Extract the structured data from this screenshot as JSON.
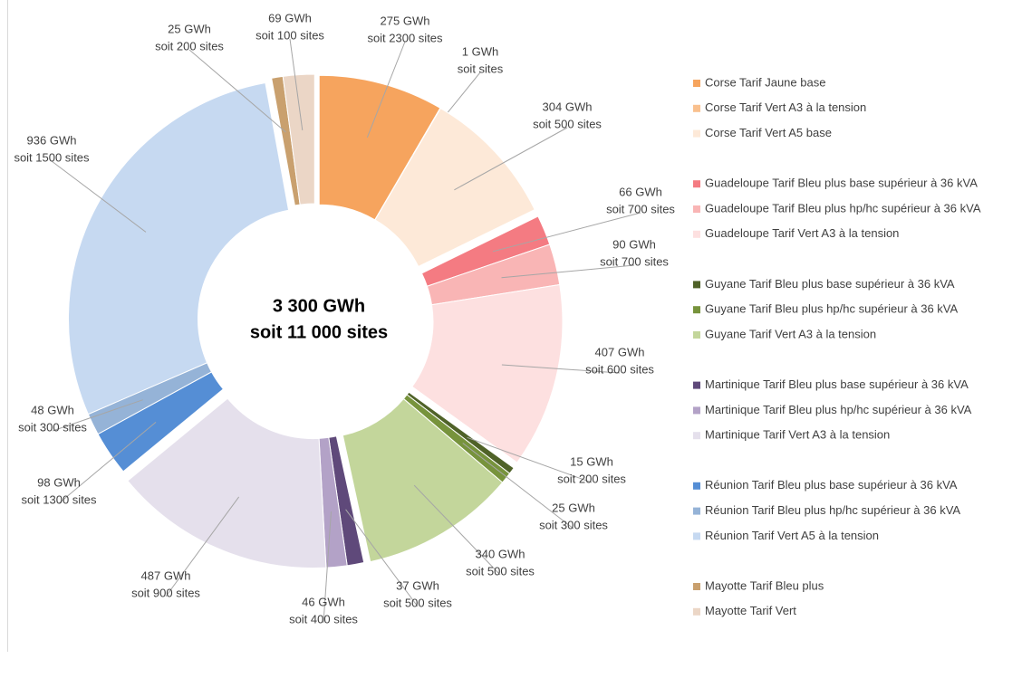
{
  "chart_data": {
    "type": "pie",
    "center_label": [
      "3 300 GWh",
      "soit 11 000 sites"
    ],
    "categories": [
      "Corse Tarif Jaune base",
      "Corse Tarif Vert A3 à la tension",
      "Corse Tarif Vert A5 base",
      "Guadeloupe Tarif Bleu plus base supérieur à 36 kVA",
      "Guadeloupe Tarif Bleu plus hp/hc supérieur à 36 kVA",
      "Guadeloupe Tarif Vert A3 à la tension",
      "Guyane Tarif Bleu plus base supérieur à 36 kVA",
      "Guyane Tarif Bleu plus hp/hc supérieur à 36 kVA",
      "Guyane Tarif Vert A3 à la tension",
      "Martinique Tarif Bleu plus base supérieur à 36 kVA",
      "Martinique Tarif Bleu plus hp/hc supérieur à 36 kVA",
      "Martinique Tarif Vert A3 à la tension",
      "Réunion Tarif Bleu plus base supérieur à 36 kVA",
      "Réunion Tarif Bleu plus hp/hc supérieur à 36 kVA",
      "Réunion Tarif Vert A5 à la tension",
      "Mayotte Tarif Bleu plus",
      "Mayotte Tarif Vert"
    ],
    "values": [
      275,
      1,
      304,
      66,
      90,
      407,
      15,
      25,
      340,
      37,
      46,
      487,
      98,
      48,
      936,
      25,
      69
    ],
    "value_labels": [
      "275 GWh",
      "1 GWh",
      "304 GWh",
      "66 GWh",
      "90 GWh",
      "407 GWh",
      "15 GWh",
      "25 GWh",
      "340 GWh",
      "37 GWh",
      "46 GWh",
      "487 GWh",
      "98 GWh",
      "48 GWh",
      "936 GWh",
      "25 GWh",
      "69 GWh"
    ],
    "site_labels": [
      "soit 2300 sites",
      "soit  sites",
      "soit 500 sites",
      "soit 700 sites",
      "soit 700 sites",
      "soit 600 sites",
      "soit 200 sites",
      "soit 300 sites",
      "soit 500 sites",
      "soit 500 sites",
      "soit 400 sites",
      "soit 900 sites",
      "soit 1300 sites",
      "soit 300 sites",
      "soit 1500 sites",
      "soit 200 sites",
      "soit 100 sites"
    ],
    "colors": [
      "#f6a45e",
      "#f9c08e",
      "#fde9d8",
      "#f47b82",
      "#f9b5b5",
      "#fde0e0",
      "#4f6228",
      "#77933c",
      "#c3d69b",
      "#5f497a",
      "#b3a2c7",
      "#e5e0ec",
      "#558ed5",
      "#95b3d7",
      "#c6d9f1",
      "#c9a06e",
      "#ebd6c6"
    ]
  }
}
